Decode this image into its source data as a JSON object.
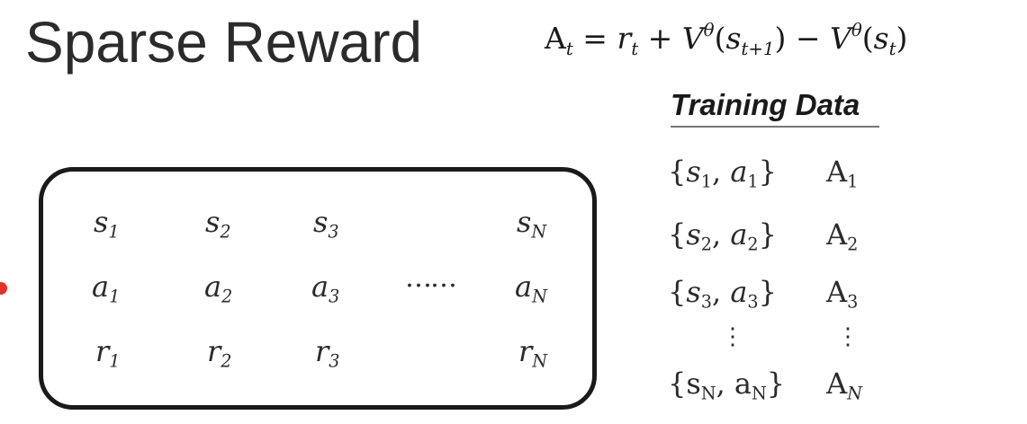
{
  "title": "Sparse Reward",
  "equation": {
    "lhs": "A",
    "lhs_sub": "t",
    "parts": [
      "r",
      "t",
      "V",
      "θ",
      "s",
      "t+1",
      "V",
      "θ",
      "s",
      "t"
    ]
  },
  "trajectory": {
    "row1": [
      {
        "base": "s",
        "sub": "1"
      },
      {
        "base": "s",
        "sub": "2"
      },
      {
        "base": "s",
        "sub": "3"
      },
      {
        "base": "s",
        "sub": "N"
      }
    ],
    "row2": [
      {
        "base": "a",
        "sub": "1"
      },
      {
        "base": "a",
        "sub": "2"
      },
      {
        "base": "a",
        "sub": "3"
      },
      {
        "base": "a",
        "sub": "N"
      }
    ],
    "row3": [
      {
        "base": "r",
        "sub": "1"
      },
      {
        "base": "r",
        "sub": "2"
      },
      {
        "base": "r",
        "sub": "3"
      },
      {
        "base": "r",
        "sub": "N"
      }
    ],
    "ellipsis": "……"
  },
  "training_data": {
    "header": "Training Data",
    "rows": [
      {
        "s": "s",
        "s_sub": "1",
        "a": "a",
        "a_sub": "1",
        "adv": "A",
        "adv_sub": "1"
      },
      {
        "s": "s",
        "s_sub": "2",
        "a": "a",
        "a_sub": "2",
        "adv": "A",
        "adv_sub": "2"
      },
      {
        "s": "s",
        "s_sub": "3",
        "a": "a",
        "a_sub": "3",
        "adv": "A",
        "adv_sub": "3"
      },
      {
        "s": "s",
        "s_sub": "N",
        "a": "a",
        "a_sub": "N",
        "adv": "A",
        "adv_sub": "N"
      }
    ],
    "vdots": "⋮"
  }
}
